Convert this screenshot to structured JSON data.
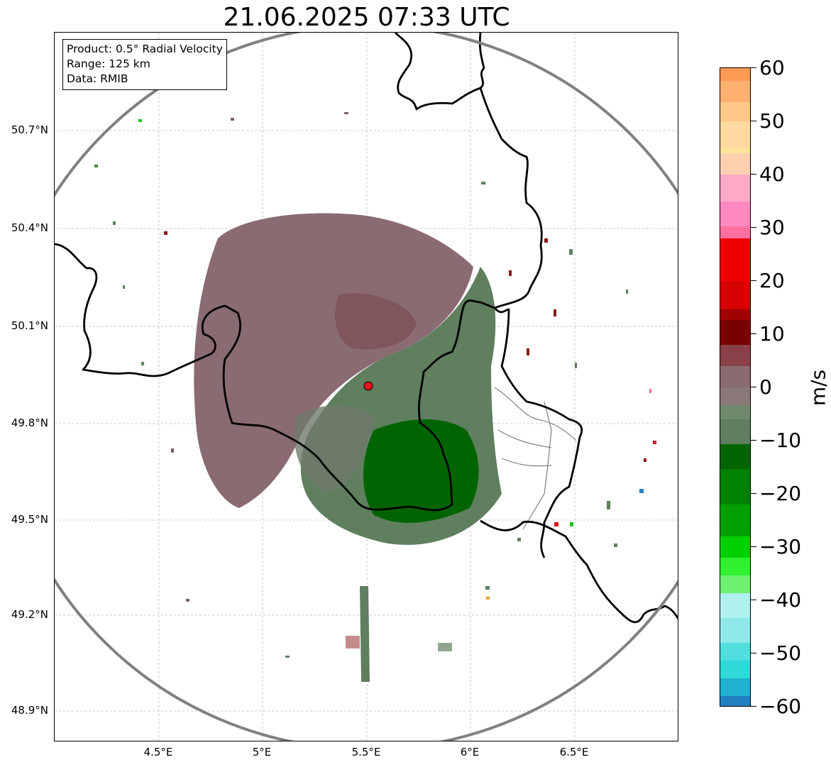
{
  "title": "21.06.2025 07:33 UTC",
  "info": {
    "product": "Product: 0.5° Radial Velocity",
    "range": "Range: 125 km",
    "source": "Data: RMIB"
  },
  "lat_ticks": [
    "50.7°N",
    "50.4°N",
    "50.1°N",
    "49.8°N",
    "49.5°N",
    "49.2°N",
    "48.9°N"
  ],
  "lon_ticks": [
    "4.5°E",
    "5°E",
    "5.5°E",
    "6°E",
    "6.5°E"
  ],
  "colorbar": {
    "unit": "m/s",
    "min": -60,
    "max": 60,
    "tick_labels": [
      "60",
      "50",
      "40",
      "30",
      "20",
      "10",
      "0",
      "−10",
      "−20",
      "−30",
      "−40",
      "−50",
      "−60"
    ]
  },
  "colors": {
    "inbound_strong": "#006400",
    "inbound_mid": "#5f7f5f",
    "outbound_mid": "#8a6b72",
    "range_ring": "#808080",
    "radar_site": "#e8141e",
    "border": "#000000"
  }
}
